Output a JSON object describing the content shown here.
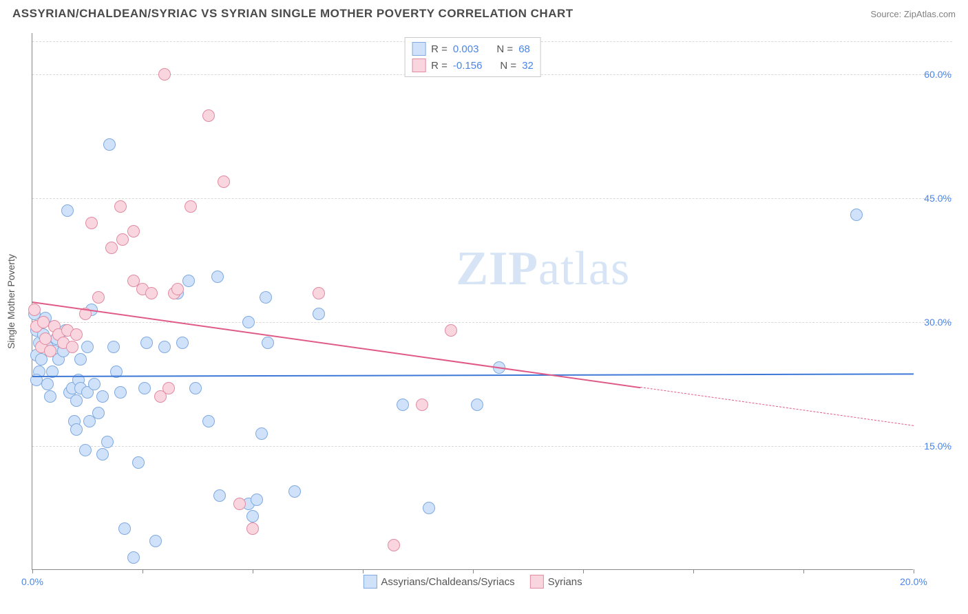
{
  "title": "ASSYRIAN/CHALDEAN/SYRIAC VS SYRIAN SINGLE MOTHER POVERTY CORRELATION CHART",
  "source": "Source: ZipAtlas.com",
  "watermark_bold": "ZIP",
  "watermark_light": "atlas",
  "yaxis_title": "Single Mother Poverty",
  "chart": {
    "type": "scatter",
    "xlim": [
      0,
      20
    ],
    "ylim": [
      0,
      65
    ],
    "xticks": [
      0,
      2.5,
      5,
      7.5,
      10,
      12.5,
      15,
      17.5,
      20
    ],
    "xtick_labels": {
      "0": "0.0%",
      "20": "20.0%"
    },
    "yticks": [
      15,
      30,
      45,
      60
    ],
    "ytick_labels": [
      "15.0%",
      "30.0%",
      "45.0%",
      "60.0%"
    ],
    "grid_color": "#d8d8d8",
    "background_color": "#ffffff",
    "point_radius": 9,
    "series": [
      {
        "name": "Assyrians/Chaldeans/Syriacs",
        "fill": "#cfe2f9",
        "stroke": "#7fa9e0",
        "R": "0.003",
        "N": "68",
        "trend": {
          "y_at_x0": 23.5,
          "y_at_x20": 23.8,
          "color": "#3d78d6",
          "dash_from_x": null
        },
        "points": [
          [
            0.05,
            31
          ],
          [
            0.1,
            29
          ],
          [
            0.15,
            27.5
          ],
          [
            0.1,
            26
          ],
          [
            0.15,
            24
          ],
          [
            0.1,
            23
          ],
          [
            0.2,
            25.5
          ],
          [
            0.25,
            28.5
          ],
          [
            0.3,
            30.5
          ],
          [
            0.35,
            27
          ],
          [
            0.35,
            22.5
          ],
          [
            0.4,
            21
          ],
          [
            0.45,
            24
          ],
          [
            0.5,
            26.5
          ],
          [
            0.55,
            28
          ],
          [
            0.6,
            25.5
          ],
          [
            0.7,
            26.5
          ],
          [
            0.75,
            29
          ],
          [
            0.8,
            43.5
          ],
          [
            0.85,
            21.5
          ],
          [
            0.9,
            22
          ],
          [
            0.95,
            18
          ],
          [
            1.0,
            17
          ],
          [
            1.0,
            20.5
          ],
          [
            1.05,
            23
          ],
          [
            1.1,
            25.5
          ],
          [
            1.1,
            22
          ],
          [
            1.2,
            14.5
          ],
          [
            1.25,
            21.5
          ],
          [
            1.25,
            27
          ],
          [
            1.3,
            18
          ],
          [
            1.35,
            31.5
          ],
          [
            1.4,
            22.5
          ],
          [
            1.5,
            19
          ],
          [
            1.6,
            21
          ],
          [
            1.6,
            14
          ],
          [
            1.7,
            15.5
          ],
          [
            1.75,
            51.5
          ],
          [
            1.85,
            27
          ],
          [
            1.9,
            24
          ],
          [
            2.0,
            21.5
          ],
          [
            2.1,
            5
          ],
          [
            2.3,
            1.5
          ],
          [
            2.4,
            13
          ],
          [
            2.55,
            22
          ],
          [
            2.6,
            27.5
          ],
          [
            2.8,
            3.5
          ],
          [
            3.0,
            27
          ],
          [
            3.3,
            33.5
          ],
          [
            3.4,
            27.5
          ],
          [
            3.55,
            35
          ],
          [
            3.7,
            22
          ],
          [
            4.0,
            18
          ],
          [
            4.2,
            35.5
          ],
          [
            4.25,
            9
          ],
          [
            4.9,
            8
          ],
          [
            4.9,
            30
          ],
          [
            5.0,
            6.5
          ],
          [
            5.1,
            8.5
          ],
          [
            5.2,
            16.5
          ],
          [
            5.3,
            33
          ],
          [
            5.35,
            27.5
          ],
          [
            5.95,
            9.5
          ],
          [
            6.5,
            31
          ],
          [
            8.4,
            20
          ],
          [
            9.0,
            7.5
          ],
          [
            10.1,
            20
          ],
          [
            10.6,
            24.5
          ],
          [
            18.7,
            43
          ]
        ]
      },
      {
        "name": "Syrians",
        "fill": "#f9d6df",
        "stroke": "#e28aa0",
        "R": "-0.156",
        "N": "32",
        "trend": {
          "y_at_x0": 32.5,
          "y_at_x20": 17.5,
          "color": "#e05a87",
          "dash_from_x": 13.8
        },
        "points": [
          [
            0.05,
            31.5
          ],
          [
            0.1,
            29.5
          ],
          [
            0.2,
            27
          ],
          [
            0.25,
            30
          ],
          [
            0.3,
            28
          ],
          [
            0.4,
            26.5
          ],
          [
            0.5,
            29.5
          ],
          [
            0.6,
            28.5
          ],
          [
            0.7,
            27.5
          ],
          [
            0.8,
            29
          ],
          [
            0.9,
            27
          ],
          [
            1.0,
            28.5
          ],
          [
            1.2,
            31
          ],
          [
            1.35,
            42
          ],
          [
            1.5,
            33
          ],
          [
            1.8,
            39
          ],
          [
            2.0,
            44
          ],
          [
            2.05,
            40
          ],
          [
            2.3,
            35
          ],
          [
            2.3,
            41
          ],
          [
            2.5,
            34
          ],
          [
            2.7,
            33.5
          ],
          [
            2.9,
            21
          ],
          [
            3.0,
            60
          ],
          [
            3.1,
            22
          ],
          [
            3.22,
            33.5
          ],
          [
            3.3,
            34
          ],
          [
            3.6,
            44
          ],
          [
            4.0,
            55
          ],
          [
            4.35,
            47
          ],
          [
            4.7,
            8
          ],
          [
            5.0,
            5
          ],
          [
            6.5,
            33.5
          ],
          [
            8.2,
            3
          ],
          [
            8.85,
            20
          ],
          [
            9.5,
            29
          ]
        ]
      }
    ]
  },
  "legend_top": {
    "R_label": "R =",
    "N_label": "N ="
  },
  "legend_bottom": [
    {
      "label": "Assyrians/Chaldeans/Syriacs",
      "fill": "#cfe2f9",
      "stroke": "#7fa9e0"
    },
    {
      "label": "Syrians",
      "fill": "#f9d6df",
      "stroke": "#e28aa0"
    }
  ]
}
